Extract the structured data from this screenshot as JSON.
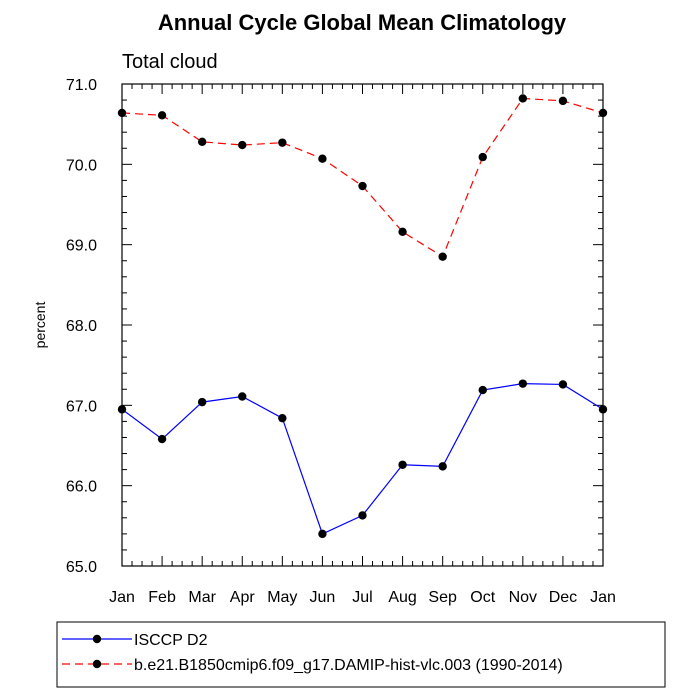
{
  "chart_data": {
    "type": "line",
    "title": "Annual Cycle Global Mean Climatology",
    "subtitle": "Total cloud",
    "ylabel": "percent",
    "xlabel": "",
    "categories": [
      "Jan",
      "Feb",
      "Mar",
      "Apr",
      "May",
      "Jun",
      "Jul",
      "Aug",
      "Sep",
      "Oct",
      "Nov",
      "Dec",
      "Jan"
    ],
    "ylim": [
      65.0,
      71.0
    ],
    "yticks": [
      "65.0",
      "66.0",
      "67.0",
      "68.0",
      "69.0",
      "70.0",
      "71.0"
    ],
    "grid": false,
    "legend_position": "bottom",
    "series": [
      {
        "name": "ISCCP D2",
        "color": "#0000ff",
        "line_style": "solid",
        "marker": "filled-circle",
        "values": [
          66.95,
          66.58,
          67.04,
          67.11,
          66.84,
          65.4,
          65.63,
          66.26,
          66.24,
          67.19,
          67.27,
          67.26,
          66.95
        ]
      },
      {
        "name": "b.e21.B1850cmip6.f09_g17.DAMIP-hist-vlc.003 (1990-2014)",
        "color": "#ff0000",
        "line_style": "dashed",
        "marker": "filled-circle",
        "values": [
          70.64,
          70.61,
          70.28,
          70.24,
          70.27,
          70.07,
          69.73,
          69.16,
          68.85,
          70.09,
          70.82,
          70.79,
          70.64
        ]
      }
    ]
  }
}
